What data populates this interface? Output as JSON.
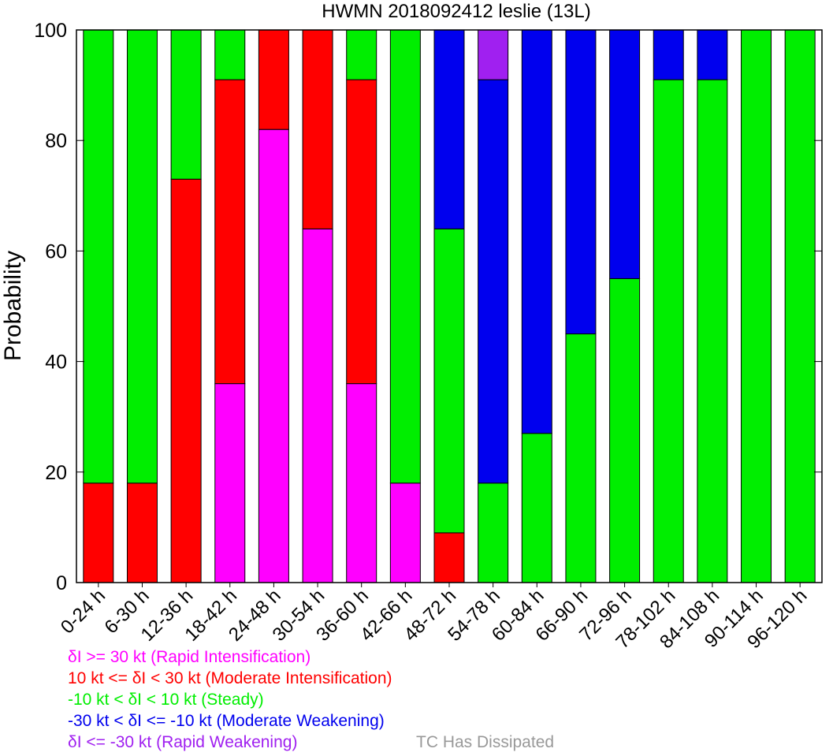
{
  "chart_data": {
    "type": "bar",
    "stacked": true,
    "title": "HWMN 2018092412 leslie (13L)",
    "xlabel": "",
    "ylabel": "Probability",
    "ylim": [
      0,
      100
    ],
    "yticks": [
      0,
      20,
      40,
      60,
      80,
      100
    ],
    "grid": false,
    "categories": [
      "0-24 h",
      "6-30 h",
      "12-36 h",
      "18-42 h",
      "24-48 h",
      "30-54 h",
      "36-60 h",
      "42-66 h",
      "48-72 h",
      "54-78 h",
      "60-84 h",
      "66-90 h",
      "72-96 h",
      "78-102 h",
      "84-108 h",
      "90-114 h",
      "96-120 h"
    ],
    "series": [
      {
        "name": "Rapid Intensification",
        "color": "#ff00ff",
        "values": [
          0,
          0,
          0,
          36,
          82,
          64,
          36,
          18,
          0,
          0,
          0,
          0,
          0,
          0,
          0,
          0,
          0
        ]
      },
      {
        "name": "Moderate Intensification",
        "color": "#ff0000",
        "values": [
          18,
          18,
          73,
          55,
          18,
          36,
          55,
          0,
          9,
          0,
          0,
          0,
          0,
          0,
          0,
          0,
          0
        ]
      },
      {
        "name": "Steady",
        "color": "#00ee00",
        "values": [
          82,
          82,
          27,
          9,
          0,
          0,
          9,
          82,
          55,
          18,
          27,
          45,
          55,
          91,
          91,
          100,
          100
        ]
      },
      {
        "name": "Moderate Weakening",
        "color": "#0000ee",
        "values": [
          0,
          0,
          0,
          0,
          0,
          0,
          0,
          0,
          36,
          73,
          73,
          55,
          45,
          9,
          9,
          0,
          0
        ]
      },
      {
        "name": "Rapid Weakening",
        "color": "#a020f0",
        "values": [
          0,
          0,
          0,
          0,
          0,
          0,
          0,
          0,
          0,
          9,
          0,
          0,
          0,
          0,
          0,
          0,
          0
        ]
      }
    ]
  },
  "legend": {
    "items": [
      {
        "text": "δI >= 30 kt (Rapid Intensification)",
        "color": "#ff00ff"
      },
      {
        "text": "10 kt <= δI < 30 kt (Moderate Intensification)",
        "color": "#ff0000"
      },
      {
        "text": "-10 kt < δI < 10 kt (Steady)",
        "color": "#00ee00"
      },
      {
        "text": "-30 kt < δI <= -10 kt (Moderate Weakening)",
        "color": "#0000ee"
      },
      {
        "text": "δI <= -30 kt (Rapid Weakening)",
        "color": "#a020f0"
      }
    ],
    "dissipated": {
      "text": "TC Has Dissipated",
      "color": "#999999"
    }
  }
}
